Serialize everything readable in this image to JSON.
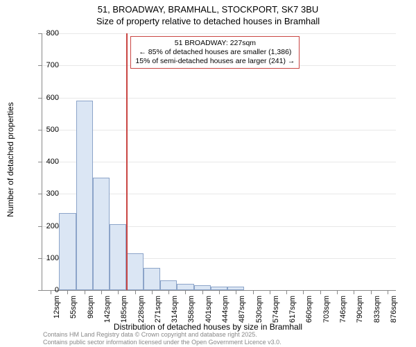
{
  "title_line1": "51, BROADWAY, BRAMHALL, STOCKPORT, SK7 3BU",
  "title_line2": "Size of property relative to detached houses in Bramhall",
  "y_axis_title": "Number of detached properties",
  "x_axis_title": "Distribution of detached houses by size in Bramhall",
  "chart": {
    "type": "histogram",
    "ylim": [
      0,
      800
    ],
    "ytick_step": 100,
    "x_categories": [
      "12sqm",
      "55sqm",
      "98sqm",
      "142sqm",
      "185sqm",
      "228sqm",
      "271sqm",
      "314sqm",
      "358sqm",
      "401sqm",
      "444sqm",
      "487sqm",
      "530sqm",
      "574sqm",
      "617sqm",
      "660sqm",
      "703sqm",
      "746sqm",
      "790sqm",
      "833sqm",
      "876sqm"
    ],
    "values": [
      0,
      240,
      590,
      350,
      205,
      115,
      70,
      30,
      20,
      15,
      10,
      10,
      0,
      0,
      0,
      0,
      0,
      0,
      0,
      0,
      0
    ],
    "bar_fill": "#dbe6f4",
    "bar_border": "#8ca4c9",
    "grid_color": "#e8e8e8",
    "axis_color": "#888888",
    "background": "#ffffff",
    "ref_line": {
      "x_index": 5,
      "color": "#c94542"
    },
    "annotation": {
      "line1": "51 BROADWAY: 227sqm",
      "line2": "← 85% of detached houses are smaller (1,386)",
      "line3": "15% of semi-detached houses are larger (241) →",
      "border_color": "#c94542"
    }
  },
  "credits_line1": "Contains HM Land Registry data © Crown copyright and database right 2025.",
  "credits_line2": "Contains public sector information licensed under the Open Government Licence v3.0."
}
